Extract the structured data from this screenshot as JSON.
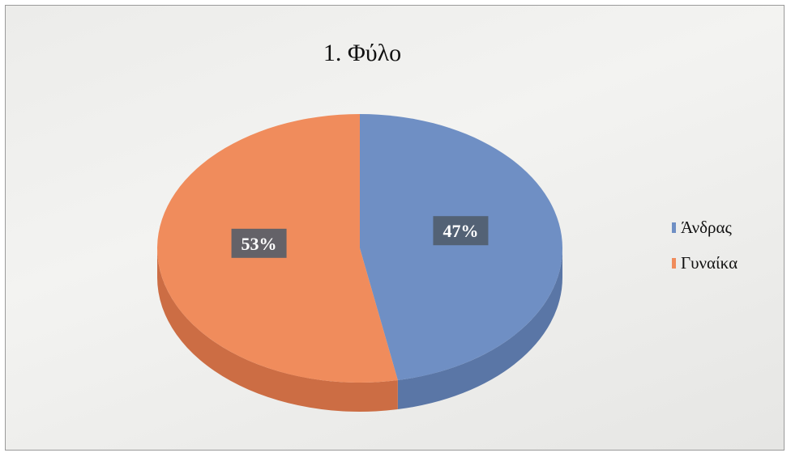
{
  "chart_data": {
    "type": "pie",
    "title": "1. Φύλο",
    "categories": [
      "Άνδρας",
      "Γυναίκα"
    ],
    "values": [
      47,
      53
    ],
    "labels": [
      "47%",
      "53%"
    ],
    "colors": [
      "#6f8fc4",
      "#f08c5c"
    ],
    "side_colors": [
      "#5a76a6",
      "#cc6d44"
    ],
    "legend_position": "right",
    "style": "3d"
  }
}
